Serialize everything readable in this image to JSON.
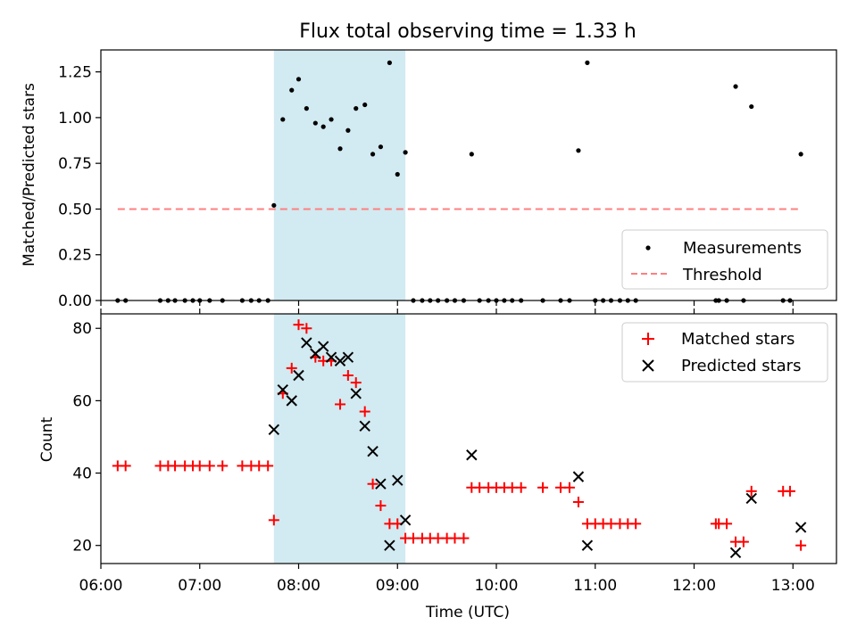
{
  "title": "Flux total observing time = 1.33 h",
  "colors": {
    "shade": "#add8e6",
    "measure": "#000000",
    "threshold": "#ff7f7f",
    "matched": "#ff0000",
    "predicted": "#000000"
  },
  "chart_data": [
    {
      "type": "scatter",
      "ylabel": "Matched/Predicted stars",
      "xlim": [
        6.0,
        13.44
      ],
      "ylim": [
        0,
        1.37
      ],
      "yticks": [
        "0.00",
        "0.25",
        "0.50",
        "0.75",
        "1.00",
        "1.25"
      ],
      "legend_position": "lower right",
      "shaded_interval": [
        7.75,
        9.08
      ],
      "legend": {
        "measurements": "Measurements",
        "threshold": "Threshold"
      },
      "threshold": {
        "name": "Threshold",
        "x": [
          6.17,
          13.08
        ],
        "y": 0.5
      },
      "series": [
        {
          "name": "Measurements",
          "points": [
            [
              6.17,
              0
            ],
            [
              6.25,
              0
            ],
            [
              6.6,
              0
            ],
            [
              6.68,
              0
            ],
            [
              6.75,
              0
            ],
            [
              6.85,
              0
            ],
            [
              6.93,
              0
            ],
            [
              7.0,
              0
            ],
            [
              7.1,
              0
            ],
            [
              7.23,
              0
            ],
            [
              7.43,
              0
            ],
            [
              7.52,
              0
            ],
            [
              7.6,
              0
            ],
            [
              7.69,
              0
            ],
            [
              7.75,
              0.52
            ],
            [
              7.84,
              0.99
            ],
            [
              7.93,
              1.15
            ],
            [
              8.0,
              1.21
            ],
            [
              8.08,
              1.05
            ],
            [
              8.17,
              0.97
            ],
            [
              8.25,
              0.95
            ],
            [
              8.33,
              0.99
            ],
            [
              8.42,
              0.83
            ],
            [
              8.5,
              0.93
            ],
            [
              8.58,
              1.05
            ],
            [
              8.67,
              1.07
            ],
            [
              8.75,
              0.8
            ],
            [
              8.83,
              0.84
            ],
            [
              8.92,
              1.3
            ],
            [
              9.0,
              0.69
            ],
            [
              9.08,
              0.81
            ],
            [
              9.16,
              0
            ],
            [
              9.25,
              0
            ],
            [
              9.33,
              0
            ],
            [
              9.41,
              0
            ],
            [
              9.5,
              0
            ],
            [
              9.58,
              0
            ],
            [
              9.67,
              0
            ],
            [
              9.75,
              0.8
            ],
            [
              9.83,
              0
            ],
            [
              9.92,
              0
            ],
            [
              10.0,
              0
            ],
            [
              10.08,
              0
            ],
            [
              10.16,
              0
            ],
            [
              10.25,
              0
            ],
            [
              10.47,
              0
            ],
            [
              10.65,
              0
            ],
            [
              10.74,
              0
            ],
            [
              10.83,
              0.82
            ],
            [
              10.92,
              1.3
            ],
            [
              11.0,
              0
            ],
            [
              11.08,
              0
            ],
            [
              11.16,
              0
            ],
            [
              11.25,
              0
            ],
            [
              11.33,
              0
            ],
            [
              11.41,
              0
            ],
            [
              12.22,
              0
            ],
            [
              12.25,
              0
            ],
            [
              12.33,
              0
            ],
            [
              12.42,
              1.17
            ],
            [
              12.5,
              0
            ],
            [
              12.58,
              1.06
            ],
            [
              12.9,
              0
            ],
            [
              12.97,
              0
            ],
            [
              13.08,
              0.8
            ]
          ]
        }
      ]
    },
    {
      "type": "scatter",
      "xlabel": "Time (UTC)",
      "ylabel": "Count",
      "xlim": [
        6.0,
        13.44
      ],
      "ylim": [
        15,
        84
      ],
      "yticks": [
        "20",
        "40",
        "60",
        "80"
      ],
      "xticks": [
        "06:00",
        "07:00",
        "08:00",
        "09:00",
        "10:00",
        "11:00",
        "12:00",
        "13:00"
      ],
      "legend_position": "upper right",
      "shaded_interval": [
        7.75,
        9.08
      ],
      "series": [
        {
          "name": "Matched stars",
          "marker": "plus",
          "points": [
            [
              6.17,
              42
            ],
            [
              6.25,
              42
            ],
            [
              6.6,
              42
            ],
            [
              6.68,
              42
            ],
            [
              6.75,
              42
            ],
            [
              6.85,
              42
            ],
            [
              6.93,
              42
            ],
            [
              7.0,
              42
            ],
            [
              7.1,
              42
            ],
            [
              7.23,
              42
            ],
            [
              7.43,
              42
            ],
            [
              7.52,
              42
            ],
            [
              7.6,
              42
            ],
            [
              7.69,
              42
            ],
            [
              7.75,
              27
            ],
            [
              7.84,
              62
            ],
            [
              7.93,
              69
            ],
            [
              8.0,
              81
            ],
            [
              8.08,
              80
            ],
            [
              8.17,
              72
            ],
            [
              8.25,
              71
            ],
            [
              8.33,
              71
            ],
            [
              8.42,
              59
            ],
            [
              8.5,
              67
            ],
            [
              8.58,
              65
            ],
            [
              8.67,
              57
            ],
            [
              8.75,
              37
            ],
            [
              8.83,
              31
            ],
            [
              8.92,
              26
            ],
            [
              9.0,
              26
            ],
            [
              9.08,
              22
            ],
            [
              9.16,
              22
            ],
            [
              9.25,
              22
            ],
            [
              9.33,
              22
            ],
            [
              9.41,
              22
            ],
            [
              9.5,
              22
            ],
            [
              9.58,
              22
            ],
            [
              9.67,
              22
            ],
            [
              9.75,
              36
            ],
            [
              9.83,
              36
            ],
            [
              9.92,
              36
            ],
            [
              10.0,
              36
            ],
            [
              10.08,
              36
            ],
            [
              10.16,
              36
            ],
            [
              10.25,
              36
            ],
            [
              10.47,
              36
            ],
            [
              10.65,
              36
            ],
            [
              10.74,
              36
            ],
            [
              10.83,
              32
            ],
            [
              10.92,
              26
            ],
            [
              11.0,
              26
            ],
            [
              11.08,
              26
            ],
            [
              11.16,
              26
            ],
            [
              11.25,
              26
            ],
            [
              11.33,
              26
            ],
            [
              11.41,
              26
            ],
            [
              12.22,
              26
            ],
            [
              12.25,
              26
            ],
            [
              12.33,
              26
            ],
            [
              12.42,
              21
            ],
            [
              12.5,
              21
            ],
            [
              12.58,
              35
            ],
            [
              12.9,
              35
            ],
            [
              12.97,
              35
            ],
            [
              13.08,
              20
            ]
          ]
        },
        {
          "name": "Predicted stars",
          "marker": "x",
          "points": [
            [
              7.75,
              52
            ],
            [
              7.84,
              63
            ],
            [
              7.93,
              60
            ],
            [
              8.0,
              67
            ],
            [
              8.08,
              76
            ],
            [
              8.17,
              73
            ],
            [
              8.25,
              75
            ],
            [
              8.33,
              72
            ],
            [
              8.42,
              71
            ],
            [
              8.5,
              72
            ],
            [
              8.58,
              62
            ],
            [
              8.67,
              53
            ],
            [
              8.75,
              46
            ],
            [
              8.83,
              37
            ],
            [
              8.92,
              20
            ],
            [
              9.0,
              38
            ],
            [
              9.08,
              27
            ],
            [
              9.75,
              45
            ],
            [
              10.83,
              39
            ],
            [
              10.92,
              20
            ],
            [
              12.42,
              18
            ],
            [
              12.58,
              33
            ],
            [
              13.08,
              25
            ]
          ]
        }
      ]
    }
  ]
}
